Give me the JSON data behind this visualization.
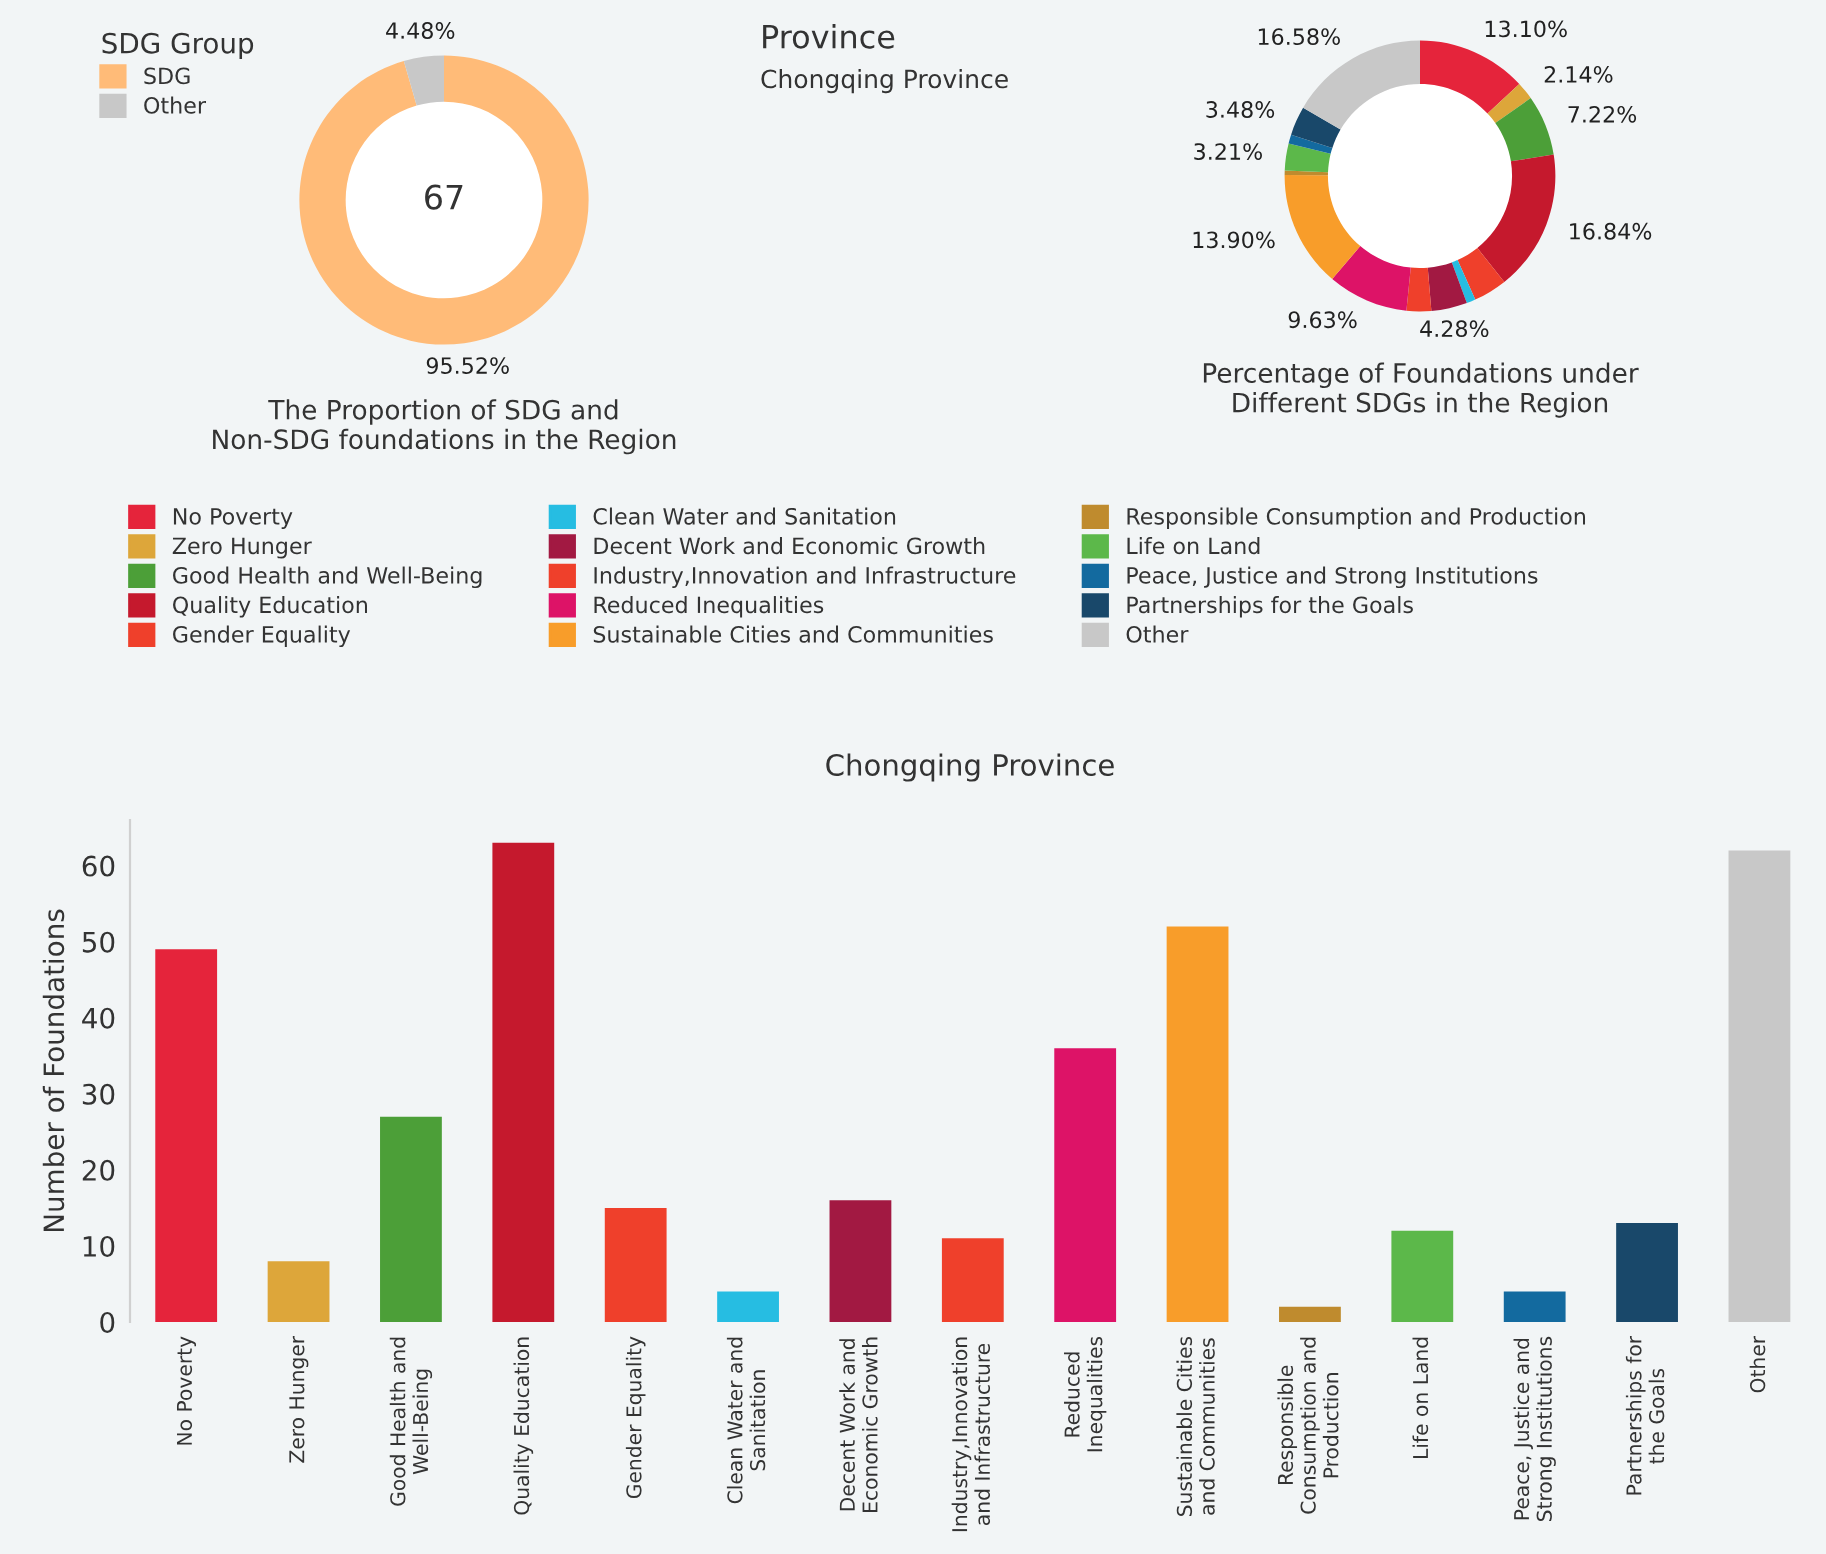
{
  "chart_data": [
    {
      "type": "donut",
      "title": "The Proportion of SDG and\nNon-SDG foundations in the Region",
      "categories": [
        "SDG",
        "Other"
      ],
      "values": [
        95.52,
        4.48
      ],
      "colors": [
        "#ffbb78",
        "#c8c8c8"
      ],
      "value_labels": [
        "95.52%",
        "4.48%"
      ],
      "legend": "top left",
      "legend_title": "SDG Group",
      "annotations": [
        "67"
      ]
    },
    {
      "type": "other",
      "title": "Province",
      "subtitle": "Chongqing Province"
    },
    {
      "type": "donut",
      "title": "Percentage of Foundations under\nDifferent SDGs in the Region",
      "categories": [
        "No Poverty",
        "Zero Hunger",
        "Good Health and Well-Being",
        "Quality Education",
        "Gender Equality",
        "Clean Water and Sanitation",
        "Decent Work and Economic Growth",
        "Industry,Innovation and Infrastructure",
        "Reduced Inequalities",
        "Sustainable Cities and Communities",
        "Responsible Consumption and Production",
        "Life on Land",
        "Peace, Justice and Strong Institutions",
        "Partnerships for the Goals",
        "Other"
      ],
      "values": [
        13.1,
        2.14,
        7.22,
        16.84,
        4.01,
        1.07,
        4.28,
        2.94,
        9.63,
        13.9,
        0.53,
        3.21,
        1.07,
        3.48,
        16.58
      ],
      "colors": [
        "#e5243b",
        "#dda63a",
        "#4c9f38",
        "#c5192d",
        "#ef402b",
        "#26bde2",
        "#a21942",
        "#ef402b",
        "#dd1367",
        "#f89d2a",
        "#bf8b2e",
        "#5cb84a",
        "#136a9f",
        "#19486a",
        "#c8c8c8"
      ],
      "value_labels": [
        "13.10%",
        "2.14%",
        "7.22%",
        "16.84%",
        null,
        null,
        "4.28%",
        null,
        "9.63%",
        "13.90%",
        null,
        "3.21%",
        null,
        "3.48%",
        "16.58%"
      ],
      "legend": "bottom"
    },
    {
      "type": "bar",
      "title": "Chongqing Province",
      "ylabel": "Number of Foundations",
      "categories": [
        "No Poverty",
        "Zero Hunger",
        "Good Health and\nWell-Being",
        "Quality Education",
        "Gender Equality",
        "Clean Water and\nSanitation",
        "Decent Work and\nEconomic Growth",
        "Industry,Innovation\nand Infrastructure",
        "Reduced\nInequalities",
        "Sustainable Cities\nand Communities",
        "Responsible\nConsumption and\nProduction",
        "Life on Land",
        "Peace, Justice and\nStrong Institutions",
        "Partnerships for\nthe Goals",
        "Other"
      ],
      "values": [
        49,
        8,
        27,
        63,
        15,
        4,
        16,
        11,
        36,
        52,
        2,
        12,
        4,
        13,
        62
      ],
      "colors": [
        "#e5243b",
        "#dda63a",
        "#4c9f38",
        "#c5192d",
        "#ef402b",
        "#26bde2",
        "#a21942",
        "#ef402b",
        "#dd1367",
        "#f89d2a",
        "#bf8b2e",
        "#5cb84a",
        "#136a9f",
        "#19486a",
        "#c8c8c8"
      ],
      "ylim": [
        0,
        66
      ],
      "yticks": [
        0,
        10,
        20,
        30,
        40,
        50,
        60
      ],
      "grid": false
    }
  ]
}
